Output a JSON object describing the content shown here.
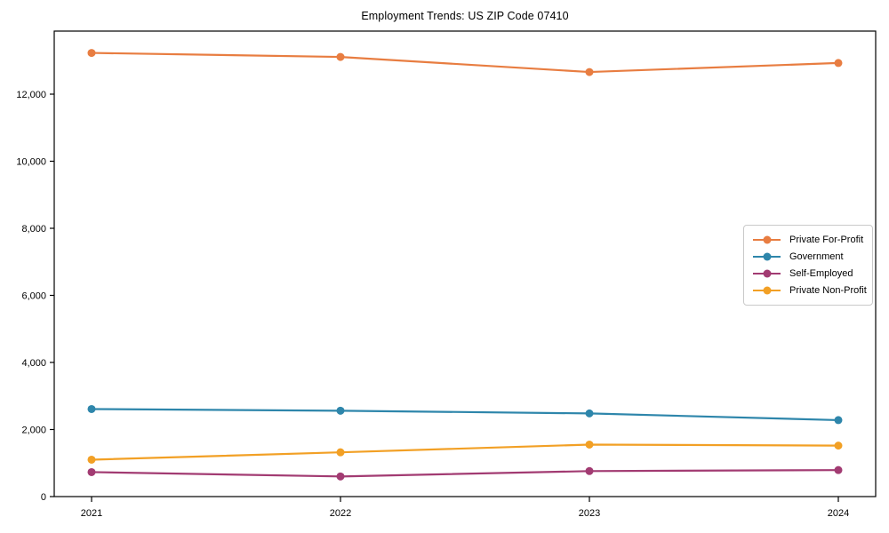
{
  "chart_data": {
    "type": "line",
    "title": "Employment Trends: US ZIP Code 07410",
    "x": [
      2021,
      2022,
      2023,
      2024
    ],
    "x_tick_labels": [
      "2021",
      "2022",
      "2023",
      "2024"
    ],
    "series": [
      {
        "name": "Private For-Profit",
        "color": "#E87D41",
        "values": [
          13230,
          13110,
          12660,
          12930
        ]
      },
      {
        "name": "Government",
        "color": "#2E86AB",
        "values": [
          2610,
          2560,
          2480,
          2280
        ]
      },
      {
        "name": "Self-Employed",
        "color": "#A23B72",
        "values": [
          730,
          600,
          760,
          790
        ]
      },
      {
        "name": "Private Non-Profit",
        "color": "#F2A025",
        "values": [
          1100,
          1320,
          1550,
          1520
        ]
      }
    ],
    "y_ticks": [
      0,
      2000,
      4000,
      6000,
      8000,
      10000,
      12000
    ],
    "y_tick_labels": [
      "0",
      "2,000",
      "4,000",
      "6,000",
      "8,000",
      "10,000",
      "12,000"
    ],
    "ylim": [
      0,
      13880
    ],
    "xlabel": "",
    "ylabel": "",
    "grid": false,
    "legend_position": "center-right",
    "marker": "circle",
    "axis_color": "#000000",
    "tick_label_color": "#000000"
  }
}
